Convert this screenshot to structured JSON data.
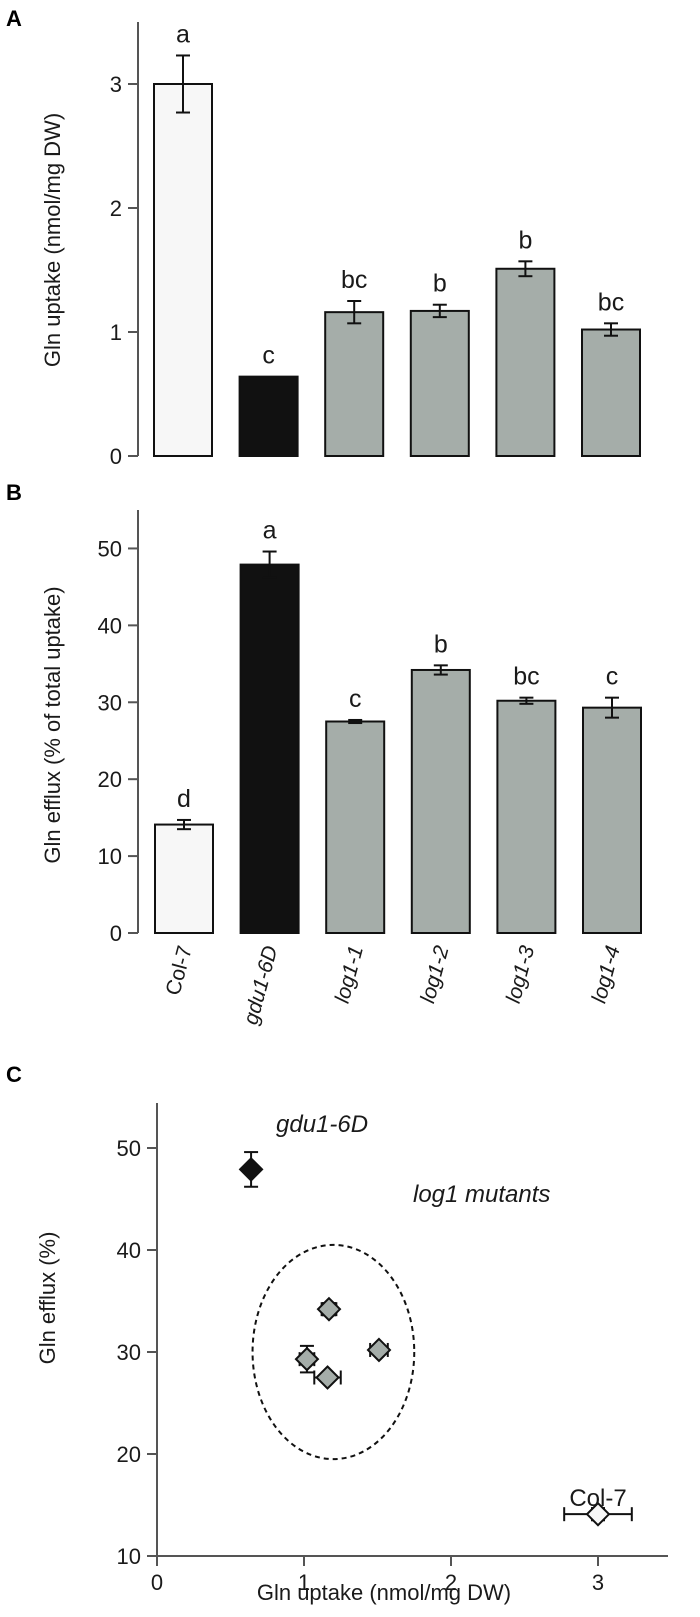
{
  "colors": {
    "col7": "#f7f7f7",
    "gdu1": "#111111",
    "log1": "#a5ada9",
    "axis": "#555555"
  },
  "chart_data": [
    {
      "panel": "A",
      "type": "bar",
      "categories": [
        "Col-7",
        "gdu1-6D",
        "log1-1",
        "log1-2",
        "log1-3",
        "log1-4"
      ],
      "category_italic": [
        false,
        true,
        true,
        true,
        true,
        true
      ],
      "values": [
        3.0,
        0.64,
        1.16,
        1.17,
        1.51,
        1.02
      ],
      "errors": [
        0.23,
        0.0,
        0.09,
        0.05,
        0.06,
        0.05
      ],
      "significance": [
        "a",
        "c",
        "bc",
        "b",
        "b",
        "bc"
      ],
      "fill_keys": [
        "col7",
        "gdu1",
        "log1",
        "log1",
        "log1",
        "log1"
      ],
      "ylabel": "Gln uptake (nmol/mg DW)",
      "ylim": [
        0,
        3.5
      ],
      "yticks": [
        0,
        1,
        2,
        3
      ],
      "grid": false,
      "legend": "none"
    },
    {
      "panel": "B",
      "type": "bar",
      "categories": [
        "Col-7",
        "gdu1-6D",
        "log1-1",
        "log1-2",
        "log1-3",
        "log1-4"
      ],
      "category_italic": [
        false,
        true,
        true,
        true,
        true,
        true
      ],
      "values": [
        14.1,
        47.9,
        27.5,
        34.2,
        30.2,
        29.3
      ],
      "errors": [
        0.6,
        1.7,
        0.2,
        0.6,
        0.4,
        1.3
      ],
      "significance": [
        "d",
        "a",
        "c",
        "b",
        "bc",
        "c"
      ],
      "fill_keys": [
        "col7",
        "gdu1",
        "log1",
        "log1",
        "log1",
        "log1"
      ],
      "ylabel": "Gln efflux (% of total uptake)",
      "ylim": [
        0,
        55
      ],
      "yticks": [
        0,
        10,
        20,
        30,
        40,
        50
      ],
      "grid": false,
      "legend": "none"
    },
    {
      "panel": "C",
      "type": "scatter",
      "points": [
        {
          "x": 3.0,
          "y": 14.1,
          "xerr": 0.23,
          "yerr": 0.6,
          "fill_key": "col7"
        },
        {
          "x": 0.64,
          "y": 47.9,
          "xerr": 0.0,
          "yerr": 1.7,
          "fill_key": "gdu1"
        },
        {
          "x": 1.16,
          "y": 27.5,
          "xerr": 0.09,
          "yerr": 0.2,
          "fill_key": "log1"
        },
        {
          "x": 1.17,
          "y": 34.2,
          "xerr": 0.05,
          "yerr": 0.6,
          "fill_key": "log1"
        },
        {
          "x": 1.51,
          "y": 30.2,
          "xerr": 0.06,
          "yerr": 0.4,
          "fill_key": "log1"
        },
        {
          "x": 1.02,
          "y": 29.3,
          "xerr": 0.05,
          "yerr": 1.3,
          "fill_key": "log1"
        }
      ],
      "annotations": [
        {
          "text": "gdu1-6D",
          "italic": true
        },
        {
          "text": "log1 mutants",
          "italic": true
        },
        {
          "text": "Col-7",
          "italic": false
        }
      ],
      "group_circle": {
        "cx": 1.2,
        "cy": 30,
        "rx": 0.55,
        "ry": 10.5
      },
      "xlabel": "Gln uptake (nmol/mg DW)",
      "ylabel": "Gln efflux (%)",
      "xlim": [
        0,
        3.5
      ],
      "ylim": [
        10,
        55
      ],
      "xticks": [
        0,
        1,
        2,
        3
      ],
      "yticks": [
        10,
        20,
        30,
        40,
        50
      ],
      "grid": false,
      "legend": "none"
    }
  ]
}
